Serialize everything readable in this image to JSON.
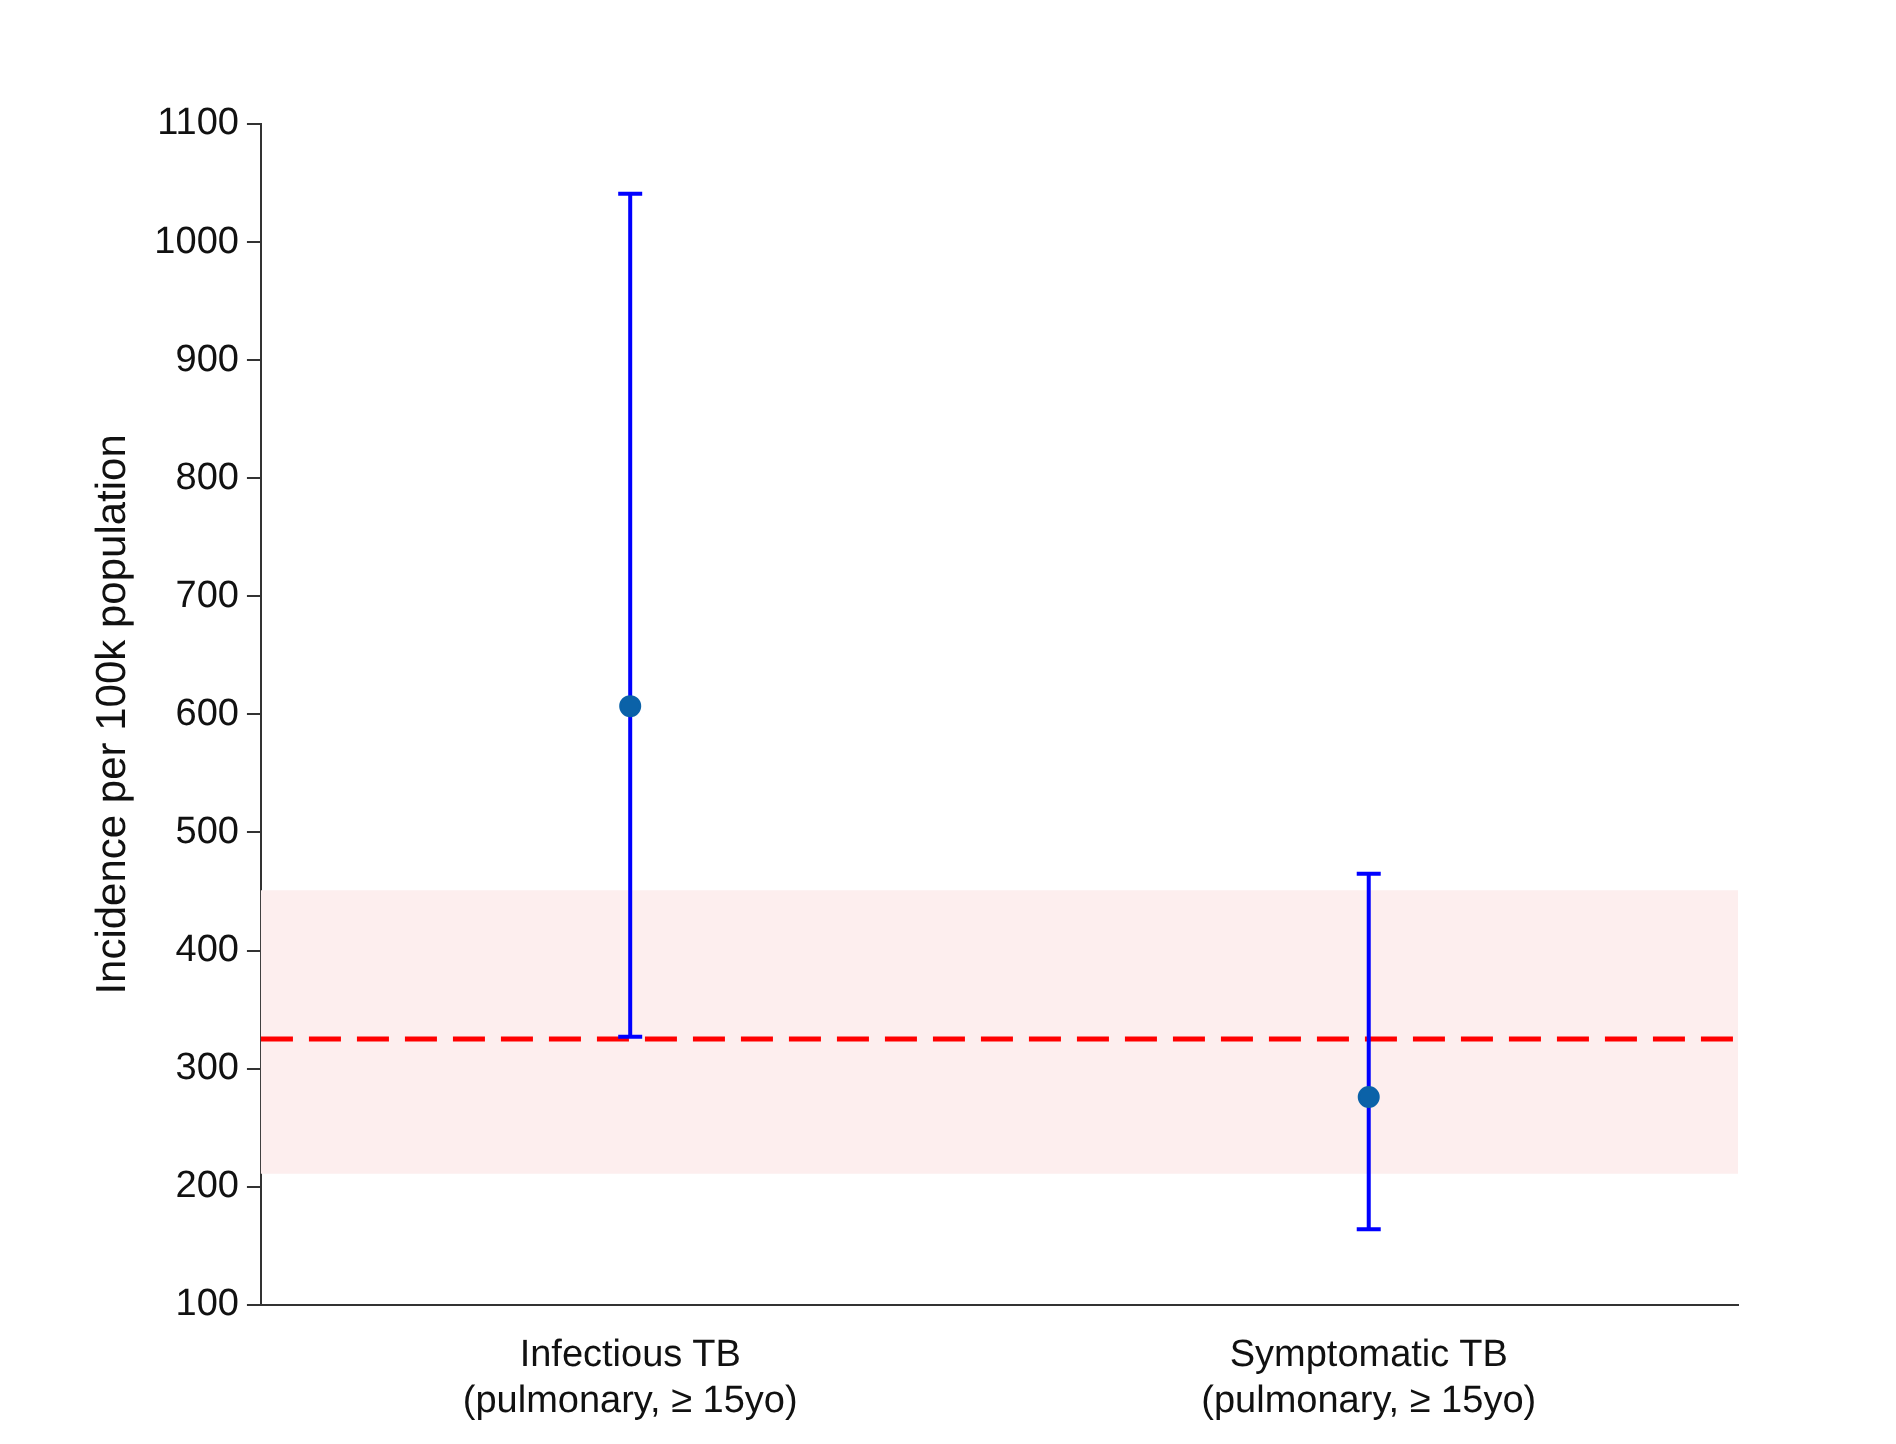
{
  "chart_data": {
    "type": "scatter",
    "ylabel": "Incidence per 100k population",
    "categories": [
      "Infectious TB\n(pulmonary, ≥ 15yo)",
      "Symptomatic TB\n(pulmonary, ≥ 15yo)"
    ],
    "series": [
      {
        "color": "#0b62a8",
        "values": [
          607,
          276
        ],
        "errors": [
          [
            327,
            1041
          ],
          [
            164,
            465
          ]
        ]
      }
    ],
    "ylim": [
      100,
      1100
    ],
    "yticks": [
      100,
      200,
      300,
      400,
      500,
      600,
      700,
      800,
      900,
      1000,
      1100
    ],
    "grid": false,
    "legend": false,
    "marker": "circle",
    "ref_lines": [
      {
        "axis": "y",
        "value": 325,
        "color": "#ff0000",
        "line_style": "dashed"
      }
    ],
    "bands": [
      {
        "axis": "y",
        "from": 211,
        "to": 451,
        "color": "#fdeeee"
      }
    ]
  }
}
